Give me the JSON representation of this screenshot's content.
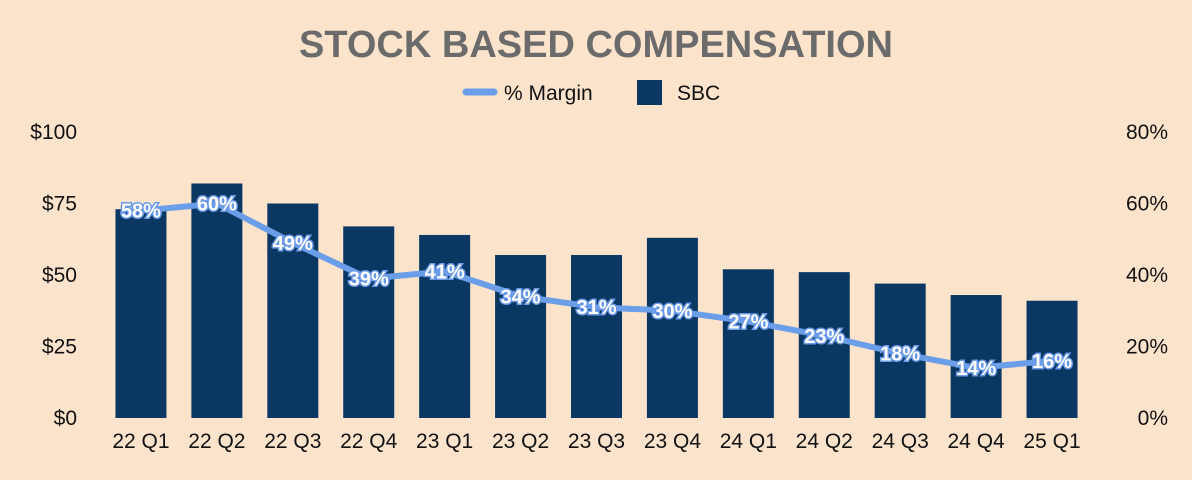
{
  "chart_data": {
    "type": "bar",
    "title": "STOCK BASED COMPENSATION",
    "categories": [
      "22 Q1",
      "22 Q2",
      "22 Q3",
      "22 Q4",
      "23 Q1",
      "23 Q2",
      "23 Q3",
      "23 Q4",
      "24 Q1",
      "24 Q2",
      "24 Q3",
      "24 Q4",
      "25 Q1"
    ],
    "series": [
      {
        "name": "SBC",
        "type": "bar",
        "axis": "left",
        "values": [
          73,
          82,
          75,
          67,
          64,
          57,
          57,
          63,
          52,
          51,
          47,
          43,
          41
        ]
      },
      {
        "name": "% Margin",
        "type": "line",
        "axis": "right",
        "values": [
          58,
          60,
          49,
          39,
          41,
          34,
          31,
          30,
          27,
          23,
          18,
          14,
          16
        ],
        "labels": [
          "58%",
          "60%",
          "49%",
          "39%",
          "41%",
          "34%",
          "31%",
          "30%",
          "27%",
          "23%",
          "18%",
          "14%",
          "16%"
        ]
      }
    ],
    "legend": {
      "position": "top-center",
      "items": [
        {
          "label": "% Margin",
          "marker": "line"
        },
        {
          "label": "SBC",
          "marker": "square"
        }
      ]
    },
    "y_left": {
      "min": 0,
      "max": 100,
      "ticks": [
        0,
        25,
        50,
        75,
        100
      ],
      "tick_labels": [
        "$0",
        "$25",
        "$50",
        "$75",
        "$100"
      ]
    },
    "y_right": {
      "min": 0,
      "max": 80,
      "ticks": [
        0,
        20,
        40,
        60,
        80
      ],
      "tick_labels": [
        "0%",
        "20%",
        "40%",
        "60%",
        "80%"
      ]
    },
    "grid": false,
    "colors": {
      "background": "#fce4cc",
      "bar": "#0b3763",
      "line": "#6b9ee8",
      "title": "#6b6b6b",
      "text": "#111111"
    }
  }
}
